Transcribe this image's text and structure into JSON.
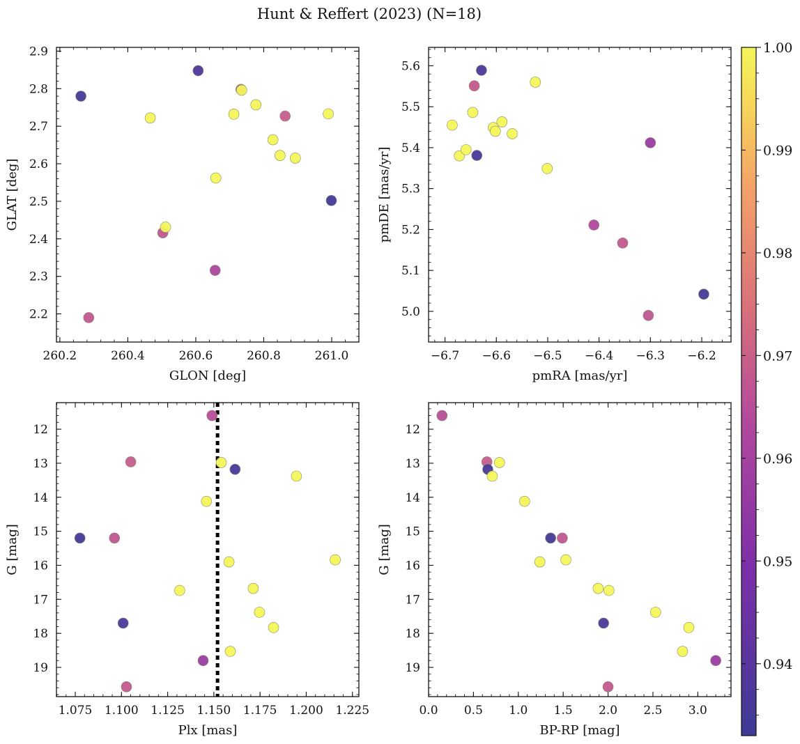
{
  "figure": {
    "title": "Hunt & Reffert (2023) (N=18)"
  },
  "colorbar": {
    "min": 0.933,
    "max": 1.0,
    "ticks": [
      "0.94",
      "0.95",
      "0.96",
      "0.97",
      "0.98",
      "0.99",
      "1.00"
    ],
    "tick_values": [
      0.94,
      0.95,
      0.96,
      0.97,
      0.98,
      0.99,
      1.0
    ],
    "colormap": "plasma"
  },
  "chart_data": [
    {
      "id": "glon-glat",
      "type": "scatter",
      "xlabel": "GLON [deg]",
      "ylabel": "GLAT [deg]",
      "xlim": [
        260.19,
        261.08
      ],
      "ylim": [
        2.125,
        2.91
      ],
      "xticks": [
        260.2,
        260.4,
        260.6,
        260.8,
        261.0
      ],
      "xtick_labels": [
        "260.2",
        "260.4",
        "260.6",
        "260.8",
        "261.0"
      ],
      "yticks": [
        2.2,
        2.3,
        2.4,
        2.5,
        2.6,
        2.7,
        2.8,
        2.9
      ],
      "ytick_labels": [
        "2.2",
        "2.3",
        "2.4",
        "2.5",
        "2.6",
        "2.7",
        "2.8",
        "2.9"
      ],
      "y_inverted": false,
      "x": [
        260.262,
        260.607,
        260.285,
        260.466,
        260.503,
        260.511,
        260.657,
        260.659,
        260.712,
        260.733,
        260.735,
        260.777,
        260.827,
        260.848,
        260.863,
        260.893,
        260.99,
        260.999
      ],
      "y": [
        2.78,
        2.848,
        2.19,
        2.722,
        2.416,
        2.431,
        2.316,
        2.562,
        2.732,
        2.798,
        2.796,
        2.757,
        2.664,
        2.622,
        2.727,
        2.615,
        2.733,
        2.502
      ],
      "c": [
        0.935,
        0.938,
        0.968,
        1.0,
        0.967,
        1.0,
        0.962,
        1.0,
        1.0,
        0.966,
        1.0,
        1.0,
        1.0,
        1.0,
        0.969,
        1.0,
        1.0,
        0.935
      ]
    },
    {
      "id": "pm",
      "type": "scatter",
      "xlabel": "pmRA [mas/yr]",
      "ylabel": "pmDE [mas/yr]",
      "xlim": [
        -6.732,
        -6.143
      ],
      "ylim": [
        4.925,
        5.645
      ],
      "xticks": [
        -6.7,
        -6.6,
        -6.5,
        -6.4,
        -6.3,
        -6.2
      ],
      "xtick_labels": [
        "−6.7",
        "−6.6",
        "−6.5",
        "−6.4",
        "−6.3",
        "−6.2"
      ],
      "yticks": [
        5.0,
        5.1,
        5.2,
        5.3,
        5.4,
        5.5,
        5.6
      ],
      "ytick_labels": [
        "5.0",
        "5.1",
        "5.2",
        "5.3",
        "5.4",
        "5.5",
        "5.6"
      ],
      "y_inverted": false,
      "x": [
        -6.686,
        -6.672,
        -6.659,
        -6.646,
        -6.643,
        -6.638,
        -6.629,
        -6.606,
        -6.602,
        -6.589,
        -6.569,
        -6.524,
        -6.501,
        -6.41,
        -6.354,
        -6.3,
        -6.304,
        -6.196
      ],
      "y": [
        5.455,
        5.38,
        5.395,
        5.486,
        5.551,
        5.381,
        5.589,
        5.449,
        5.44,
        5.463,
        5.434,
        5.56,
        5.349,
        5.211,
        5.167,
        5.412,
        4.99,
        5.042
      ],
      "c": [
        1.0,
        1.0,
        1.0,
        1.0,
        0.968,
        0.936,
        0.937,
        1.0,
        1.0,
        1.0,
        1.0,
        1.0,
        1.0,
        0.963,
        0.968,
        0.957,
        0.967,
        0.935
      ]
    },
    {
      "id": "plx-g",
      "type": "scatter",
      "xlabel": "Plx [mas]",
      "ylabel": "G [mag]",
      "xlim": [
        1.0648,
        1.2285
      ],
      "ylim": [
        11.22,
        19.86
      ],
      "xticks": [
        1.075,
        1.1,
        1.125,
        1.15,
        1.175,
        1.2,
        1.225
      ],
      "xtick_labels": [
        "1.075",
        "1.100",
        "1.125",
        "1.150",
        "1.175",
        "1.200",
        "1.225"
      ],
      "yticks": [
        12,
        13,
        14,
        15,
        16,
        17,
        18,
        19
      ],
      "ytick_labels": [
        "12",
        "13",
        "14",
        "15",
        "16",
        "17",
        "18",
        "19"
      ],
      "y_inverted": true,
      "vline": 1.152,
      "x": [
        1.149,
        1.105,
        1.154,
        1.1615,
        1.1947,
        1.146,
        1.0775,
        1.0962,
        1.1582,
        1.2157,
        1.1315,
        1.1713,
        1.1747,
        1.1823,
        1.1009,
        1.1589,
        1.1442,
        1.1027
      ],
      "y": [
        11.6,
        12.96,
        12.98,
        13.18,
        13.38,
        14.12,
        15.2,
        15.2,
        15.9,
        15.84,
        16.74,
        16.68,
        17.38,
        17.83,
        17.7,
        18.53,
        18.8,
        19.57
      ],
      "c": [
        0.965,
        0.969,
        1.0,
        0.936,
        1.0,
        1.0,
        0.935,
        0.967,
        1.0,
        1.0,
        1.0,
        1.0,
        1.0,
        1.0,
        0.937,
        1.0,
        0.957,
        0.968
      ]
    },
    {
      "id": "cmd",
      "type": "scatter",
      "xlabel": "BP-RP [mag]",
      "ylabel": "G [mag]",
      "xlim": [
        0.0,
        3.37
      ],
      "ylim": [
        11.22,
        19.86
      ],
      "xticks": [
        0.0,
        0.5,
        1.0,
        1.5,
        2.0,
        2.5,
        3.0
      ],
      "xtick_labels": [
        "0.0",
        "0.5",
        "1.0",
        "1.5",
        "2.0",
        "2.5",
        "3.0"
      ],
      "yticks": [
        12,
        13,
        14,
        15,
        16,
        17,
        18,
        19
      ],
      "ytick_labels": [
        "12",
        "13",
        "14",
        "15",
        "16",
        "17",
        "18",
        "19"
      ],
      "y_inverted": true,
      "x": [
        0.15,
        0.65,
        0.79,
        0.66,
        0.71,
        1.07,
        1.36,
        1.49,
        1.24,
        1.53,
        1.89,
        2.01,
        2.53,
        2.9,
        1.95,
        2.83,
        3.2,
        2.0
      ],
      "y": [
        11.6,
        12.96,
        12.98,
        13.18,
        13.38,
        14.12,
        15.2,
        15.2,
        15.9,
        15.84,
        16.68,
        16.74,
        17.38,
        17.83,
        17.7,
        18.53,
        18.8,
        19.57
      ],
      "c": [
        0.965,
        0.969,
        1.0,
        0.936,
        1.0,
        1.0,
        0.935,
        0.967,
        1.0,
        1.0,
        1.0,
        1.0,
        1.0,
        1.0,
        0.937,
        1.0,
        0.957,
        0.968
      ]
    }
  ]
}
